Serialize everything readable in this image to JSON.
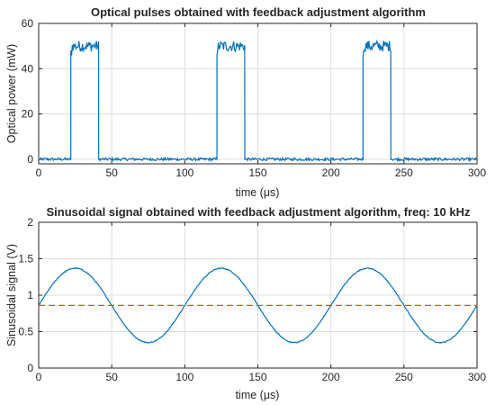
{
  "chart_data": [
    {
      "type": "line",
      "title": "Optical pulses obtained with feedback adjustment algorithm",
      "xlabel": "time (μs)",
      "ylabel": "Optical power (mW)",
      "xlim": [
        0,
        300
      ],
      "ylim": [
        -2,
        60
      ],
      "xticks": [
        0,
        50,
        100,
        150,
        200,
        250,
        300
      ],
      "yticks": [
        0,
        20,
        40,
        60
      ],
      "grid": true,
      "series": [
        {
          "color": "#0072BD",
          "style": "solid",
          "pulses": [
            {
              "start": 22,
              "end": 41,
              "level": 50
            },
            {
              "start": 122,
              "end": 141,
              "level": 50
            },
            {
              "start": 222,
              "end": 241,
              "level": 50
            }
          ],
          "baseline": 0,
          "x": [
            0,
            21.9,
            22,
            41,
            41.1,
            121.9,
            122,
            141,
            141.1,
            221.9,
            222,
            241,
            241.1,
            300
          ],
          "y": [
            0,
            0,
            50,
            50,
            0,
            0,
            50,
            50,
            0,
            0,
            50,
            50,
            0,
            0
          ]
        }
      ]
    },
    {
      "type": "line",
      "title": "Sinusoidal signal obtained with feedback adjustment algorithm, freq: 10 kHz",
      "xlabel": "time (μs)",
      "ylabel": "Sinusoidal signal (V)",
      "xlim": [
        0,
        300
      ],
      "ylim": [
        0,
        2
      ],
      "xticks": [
        0,
        50,
        100,
        150,
        200,
        250,
        300
      ],
      "yticks": [
        0,
        0.5,
        1,
        1.5,
        2
      ],
      "grid": true,
      "series": [
        {
          "color": "#0072BD",
          "style": "solid",
          "offset": 0.86,
          "amplitude": 0.51,
          "frequency_khz": 10,
          "phase_peak_us": 25,
          "x": [
            0,
            25,
            50,
            75,
            100,
            125,
            150,
            175,
            200,
            225,
            250,
            275,
            300
          ],
          "y": [
            0.86,
            1.37,
            0.86,
            0.35,
            0.86,
            1.37,
            0.86,
            0.35,
            0.86,
            1.37,
            0.86,
            0.35,
            0.86
          ]
        },
        {
          "color": "#D95319",
          "style": "dashed",
          "x": [
            0,
            300
          ],
          "y": [
            0.86,
            0.86
          ]
        }
      ]
    }
  ]
}
